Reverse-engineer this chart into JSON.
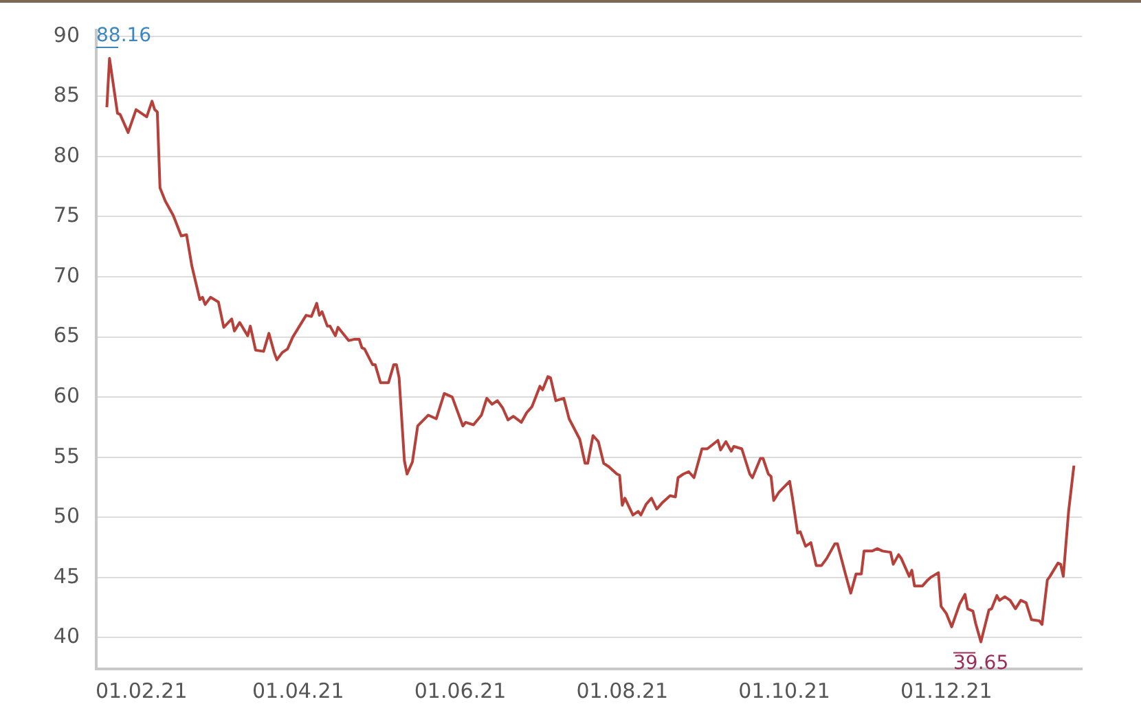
{
  "chart_data": {
    "type": "line",
    "x": [
      "2021-01-19",
      "2021-01-20",
      "2021-01-23",
      "2021-01-24",
      "2021-01-27",
      "2021-01-30",
      "2021-02-03",
      "2021-02-05",
      "2021-02-06",
      "2021-02-07",
      "2021-02-08",
      "2021-02-10",
      "2021-02-12",
      "2021-02-13",
      "2021-02-16",
      "2021-02-18",
      "2021-02-20",
      "2021-02-23",
      "2021-02-24",
      "2021-02-25",
      "2021-02-27",
      "2021-03-02",
      "2021-03-04",
      "2021-03-07",
      "2021-03-08",
      "2021-03-10",
      "2021-03-13",
      "2021-03-14",
      "2021-03-16",
      "2021-03-19",
      "2021-03-21",
      "2021-03-23",
      "2021-03-24",
      "2021-03-26",
      "2021-03-28",
      "2021-03-30",
      "2021-04-04",
      "2021-04-06",
      "2021-04-08",
      "2021-04-09",
      "2021-04-10",
      "2021-04-12",
      "2021-04-13",
      "2021-04-15",
      "2021-04-16",
      "2021-04-20",
      "2021-04-22",
      "2021-04-24",
      "2021-04-25",
      "2021-04-26",
      "2021-04-29",
      "2021-04-30",
      "2021-05-02",
      "2021-05-05",
      "2021-05-07",
      "2021-05-08",
      "2021-05-09",
      "2021-05-11",
      "2021-05-12",
      "2021-05-14",
      "2021-05-16",
      "2021-05-20",
      "2021-05-23",
      "2021-05-26",
      "2021-05-29",
      "2021-06-02",
      "2021-06-03",
      "2021-06-06",
      "2021-06-09",
      "2021-06-11",
      "2021-06-13",
      "2021-06-15",
      "2021-06-17",
      "2021-06-19",
      "2021-06-21",
      "2021-06-24",
      "2021-06-26",
      "2021-06-28",
      "2021-07-01",
      "2021-07-02",
      "2021-07-04",
      "2021-07-05",
      "2021-07-07",
      "2021-07-10",
      "2021-07-12",
      "2021-07-16",
      "2021-07-18",
      "2021-07-19",
      "2021-07-21",
      "2021-07-23",
      "2021-07-25",
      "2021-07-27",
      "2021-07-30",
      "2021-07-31",
      "2021-08-01",
      "2021-08-02",
      "2021-08-05",
      "2021-08-07",
      "2021-08-08",
      "2021-08-10",
      "2021-08-12",
      "2021-08-14",
      "2021-08-16",
      "2021-08-19",
      "2021-08-21",
      "2021-08-22",
      "2021-08-24",
      "2021-08-26",
      "2021-08-28",
      "2021-08-31",
      "2021-09-02",
      "2021-09-06",
      "2021-09-07",
      "2021-09-09",
      "2021-09-11",
      "2021-09-12",
      "2021-09-15",
      "2021-09-18",
      "2021-09-19",
      "2021-09-22",
      "2021-09-23",
      "2021-09-25",
      "2021-09-26",
      "2021-09-27",
      "2021-09-29",
      "2021-10-03",
      "2021-10-04",
      "2021-10-06",
      "2021-10-07",
      "2021-10-09",
      "2021-10-11",
      "2021-10-13",
      "2021-10-15",
      "2021-10-17",
      "2021-10-20",
      "2021-10-21",
      "2021-10-24",
      "2021-10-26",
      "2021-10-28",
      "2021-10-30",
      "2021-10-31",
      "2021-11-03",
      "2021-11-05",
      "2021-11-07",
      "2021-11-10",
      "2021-11-11",
      "2021-11-13",
      "2021-11-14",
      "2021-11-17",
      "2021-11-18",
      "2021-11-19",
      "2021-11-22",
      "2021-11-24",
      "2021-11-25",
      "2021-11-28",
      "2021-11-29",
      "2021-12-01",
      "2021-12-03",
      "2021-12-06",
      "2021-12-08",
      "2021-12-09",
      "2021-12-11",
      "2021-12-12",
      "2021-12-14",
      "2021-12-17",
      "2021-12-18",
      "2021-12-20",
      "2021-12-21",
      "2021-12-23",
      "2021-12-25",
      "2021-12-27",
      "2021-12-29",
      "2021-12-31",
      "2022-01-02",
      "2022-01-05",
      "2022-01-06",
      "2022-01-08",
      "2022-01-09",
      "2022-01-12",
      "2022-01-13",
      "2022-01-14",
      "2022-01-16",
      "2022-01-18"
    ],
    "series": [
      {
        "color": "#b5413a",
        "values": [
          84.1,
          88.16,
          83.6,
          83.5,
          82.0,
          83.9,
          83.3,
          84.6,
          83.9,
          83.7,
          77.4,
          76.3,
          75.5,
          75.1,
          73.4,
          73.5,
          70.9,
          68.1,
          68.3,
          67.7,
          68.3,
          67.9,
          65.8,
          66.5,
          65.5,
          66.2,
          65.1,
          65.9,
          63.9,
          63.8,
          65.3,
          63.7,
          63.1,
          63.7,
          64.0,
          65.0,
          66.8,
          66.7,
          67.8,
          66.8,
          67.1,
          65.9,
          65.9,
          65.1,
          65.8,
          64.7,
          64.8,
          64.8,
          64.1,
          64.0,
          62.7,
          62.7,
          61.2,
          61.2,
          62.7,
          62.7,
          61.6,
          54.7,
          53.6,
          54.6,
          57.6,
          58.5,
          58.2,
          60.3,
          60.0,
          57.6,
          57.9,
          57.7,
          58.5,
          59.9,
          59.4,
          59.7,
          59.1,
          58.1,
          58.4,
          57.9,
          58.7,
          59.2,
          60.9,
          60.6,
          61.7,
          61.6,
          59.7,
          59.9,
          58.2,
          56.5,
          54.5,
          54.5,
          56.8,
          56.3,
          54.5,
          54.2,
          53.6,
          53.5,
          51.0,
          51.6,
          50.2,
          50.5,
          50.2,
          51.1,
          51.6,
          50.7,
          51.2,
          51.8,
          51.7,
          53.3,
          53.6,
          53.8,
          53.3,
          55.7,
          55.7,
          56.4,
          55.6,
          56.3,
          55.5,
          55.9,
          55.7,
          53.6,
          53.3,
          54.9,
          54.9,
          53.6,
          53.4,
          51.4,
          52.1,
          53.0,
          51.7,
          48.7,
          48.8,
          47.6,
          47.9,
          46.0,
          46.0,
          46.6,
          47.8,
          47.8,
          45.3,
          43.7,
          45.3,
          45.3,
          47.2,
          47.2,
          47.4,
          47.2,
          47.1,
          46.1,
          46.9,
          46.6,
          45.1,
          45.6,
          44.3,
          44.3,
          44.8,
          45.0,
          45.4,
          42.6,
          42.0,
          40.9,
          42.8,
          43.6,
          42.4,
          42.2,
          41.2,
          39.65,
          42.3,
          42.4,
          43.5,
          43.1,
          43.4,
          43.1,
          42.4,
          43.1,
          42.9,
          41.5,
          41.4,
          41.1,
          44.8,
          45.1,
          46.2,
          46.1,
          45.1,
          50.5,
          54.3
        ]
      }
    ],
    "xlim": [
      "2021-01-15",
      "2022-01-21"
    ],
    "xticks": [
      {
        "value": "2021-02-01",
        "label": "01.02.21"
      },
      {
        "value": "2021-04-01",
        "label": "01.04.21"
      },
      {
        "value": "2021-06-01",
        "label": "01.06.21"
      },
      {
        "value": "2021-08-01",
        "label": "01.08.21"
      },
      {
        "value": "2021-10-01",
        "label": "01.10.21"
      },
      {
        "value": "2021-12-01",
        "label": "01.12.21"
      }
    ],
    "ylim": [
      37.4,
      90.5
    ],
    "yticks": [
      40,
      45,
      50,
      55,
      60,
      65,
      70,
      75,
      80,
      85,
      90
    ],
    "grid": "y",
    "legend": false,
    "marker": "none",
    "line_style": "solid",
    "annotations": [
      {
        "text": "88.16",
        "x": "2021-01-20",
        "y": 88.16
      },
      {
        "text": "39.65",
        "x": "2021-12-14",
        "y": 39.65
      }
    ]
  }
}
